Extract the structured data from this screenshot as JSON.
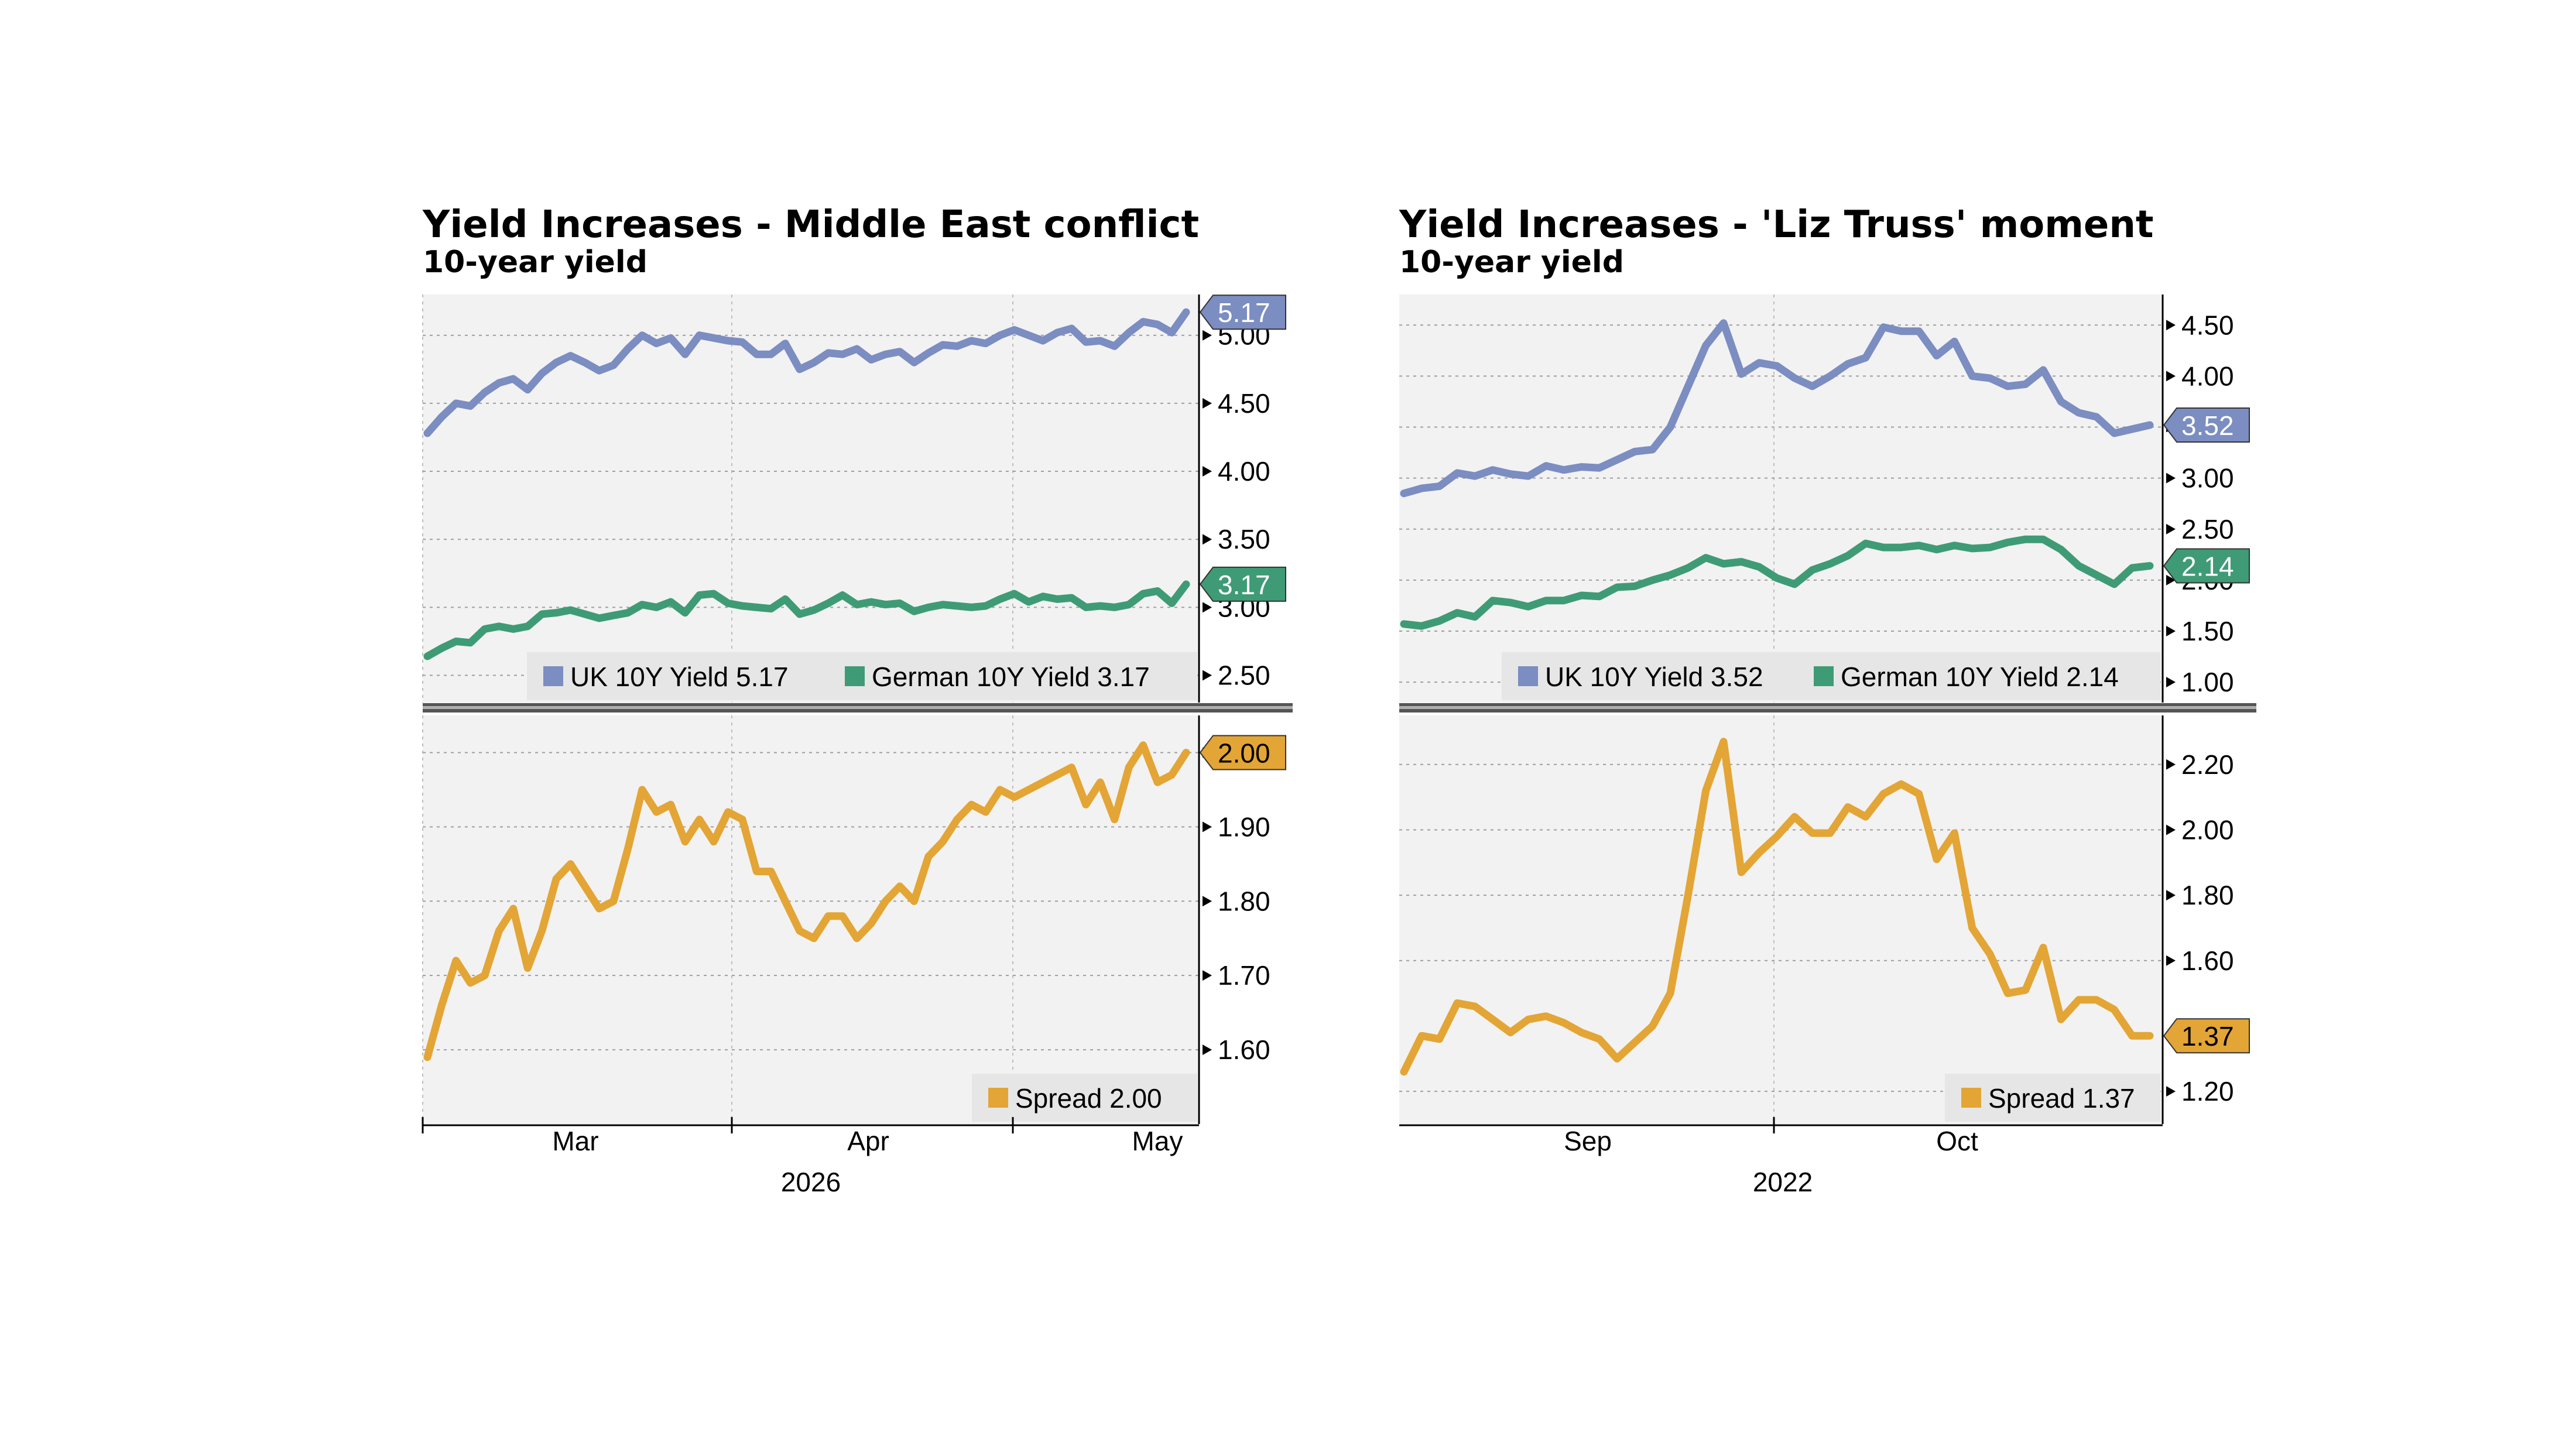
{
  "chart_data": [
    {
      "type": "line",
      "title": "Yield Increases - Middle East conflict",
      "subtitle": "10-year yield",
      "xlabel": "2026",
      "x_ticks": [
        "Mar",
        "Apr",
        "May"
      ],
      "panels": [
        {
          "ylim": [
            2.3,
            5.3
          ],
          "y_ticks": [
            "5.00",
            "4.50",
            "4.00",
            "3.50",
            "3.00",
            "2.50"
          ],
          "grid": true,
          "legend_position": "bottom-right",
          "series": [
            {
              "name": "UK 10Y Yield",
              "last_label": "5.17",
              "color": "#7b8dc1",
              "values": [
                4.28,
                4.4,
                4.5,
                4.48,
                4.58,
                4.65,
                4.68,
                4.6,
                4.72,
                4.8,
                4.85,
                4.8,
                4.74,
                4.78,
                4.9,
                5.0,
                4.94,
                4.98,
                4.86,
                5.0,
                4.98,
                4.96,
                4.95,
                4.86,
                4.86,
                4.94,
                4.75,
                4.8,
                4.87,
                4.86,
                4.9,
                4.82,
                4.86,
                4.88,
                4.8,
                4.87,
                4.93,
                4.92,
                4.96,
                4.94,
                5.0,
                5.04,
                5.0,
                4.96,
                5.02,
                5.05,
                4.95,
                4.96,
                4.92,
                5.02,
                5.1,
                5.08,
                5.02,
                5.17
              ]
            },
            {
              "name": "German 10Y Yield",
              "last_label": "3.17",
              "color": "#3f9b76",
              "values": [
                2.64,
                2.7,
                2.75,
                2.74,
                2.84,
                2.86,
                2.84,
                2.86,
                2.95,
                2.96,
                2.98,
                2.95,
                2.92,
                2.94,
                2.96,
                3.02,
                3.0,
                3.04,
                2.96,
                3.09,
                3.1,
                3.03,
                3.01,
                3.0,
                2.99,
                3.06,
                2.95,
                2.98,
                3.03,
                3.09,
                3.02,
                3.04,
                3.02,
                3.03,
                2.97,
                3.0,
                3.02,
                3.01,
                3.0,
                3.01,
                3.06,
                3.1,
                3.04,
                3.08,
                3.06,
                3.07,
                3.0,
                3.01,
                3.0,
                3.02,
                3.1,
                3.12,
                3.03,
                3.17
              ]
            }
          ]
        },
        {
          "ylim": [
            1.5,
            2.05
          ],
          "y_ticks": [
            "2.00",
            "1.90",
            "1.80",
            "1.70",
            "1.60"
          ],
          "grid": true,
          "legend_position": "bottom-right",
          "series": [
            {
              "name": "Spread",
              "last_label": "2.00",
              "color": "#e3a535",
              "values": [
                1.59,
                1.66,
                1.72,
                1.69,
                1.7,
                1.76,
                1.79,
                1.71,
                1.76,
                1.83,
                1.85,
                1.82,
                1.79,
                1.8,
                1.87,
                1.95,
                1.92,
                1.93,
                1.88,
                1.91,
                1.88,
                1.92,
                1.91,
                1.84,
                1.84,
                1.8,
                1.76,
                1.75,
                1.78,
                1.78,
                1.75,
                1.77,
                1.8,
                1.82,
                1.8,
                1.86,
                1.88,
                1.91,
                1.93,
                1.92,
                1.95,
                1.94,
                1.95,
                1.96,
                1.97,
                1.98,
                1.93,
                1.96,
                1.91,
                1.98,
                2.01,
                1.96,
                1.97,
                2.0
              ]
            }
          ]
        }
      ]
    },
    {
      "type": "line",
      "title": "Yield Increases - 'Liz Truss' moment",
      "subtitle": "10-year yield",
      "xlabel": "2022",
      "x_ticks": [
        "Sep",
        "Oct"
      ],
      "panels": [
        {
          "ylim": [
            0.8,
            4.8
          ],
          "y_ticks": [
            "4.50",
            "4.00",
            "3.50",
            "3.00",
            "2.50",
            "2.00",
            "1.50",
            "1.00"
          ],
          "grid": true,
          "legend_position": "bottom-right",
          "series": [
            {
              "name": "UK 10Y Yield",
              "last_label": "3.52",
              "color": "#7b8dc1",
              "values": [
                2.85,
                2.9,
                2.92,
                3.05,
                3.02,
                3.08,
                3.04,
                3.02,
                3.12,
                3.08,
                3.11,
                3.1,
                3.18,
                3.26,
                3.28,
                3.5,
                3.9,
                4.3,
                4.52,
                4.02,
                4.13,
                4.1,
                3.98,
                3.9,
                4.0,
                4.12,
                4.18,
                4.48,
                4.44,
                4.44,
                4.2,
                4.34,
                4.0,
                3.98,
                3.9,
                3.92,
                4.06,
                3.75,
                3.64,
                3.6,
                3.44,
                3.48,
                3.52
              ]
            },
            {
              "name": "German 10Y Yield",
              "last_label": "2.14",
              "color": "#3f9b76",
              "values": [
                1.57,
                1.55,
                1.6,
                1.68,
                1.64,
                1.8,
                1.78,
                1.74,
                1.8,
                1.8,
                1.85,
                1.84,
                1.93,
                1.94,
                2.0,
                2.05,
                2.12,
                2.22,
                2.16,
                2.18,
                2.13,
                2.02,
                1.96,
                2.1,
                2.16,
                2.24,
                2.36,
                2.32,
                2.32,
                2.34,
                2.3,
                2.34,
                2.31,
                2.32,
                2.37,
                2.4,
                2.4,
                2.3,
                2.14,
                2.05,
                1.96,
                2.12,
                2.14
              ]
            }
          ]
        },
        {
          "ylim": [
            1.1,
            2.35
          ],
          "y_ticks": [
            "2.20",
            "2.00",
            "1.80",
            "1.60",
            "1.20"
          ],
          "grid": true,
          "legend_position": "bottom-right",
          "series": [
            {
              "name": "Spread",
              "last_label": "1.37",
              "color": "#e3a535",
              "values": [
                1.26,
                1.37,
                1.36,
                1.47,
                1.46,
                1.42,
                1.38,
                1.42,
                1.43,
                1.41,
                1.38,
                1.36,
                1.3,
                1.35,
                1.4,
                1.5,
                1.8,
                2.12,
                2.27,
                1.87,
                1.93,
                1.98,
                2.04,
                1.99,
                1.99,
                2.07,
                2.04,
                2.11,
                2.14,
                2.11,
                1.91,
                1.99,
                1.7,
                1.62,
                1.5,
                1.51,
                1.64,
                1.42,
                1.48,
                1.48,
                1.45,
                1.37,
                1.37
              ]
            }
          ]
        }
      ]
    }
  ],
  "legend_text": [
    [
      "UK 10Y Yield 5.17",
      "German 10Y Yield 3.17",
      "Spread 2.00"
    ],
    [
      "UK 10Y Yield 3.52",
      "German 10Y Yield 2.14",
      "Spread 1.37"
    ]
  ]
}
